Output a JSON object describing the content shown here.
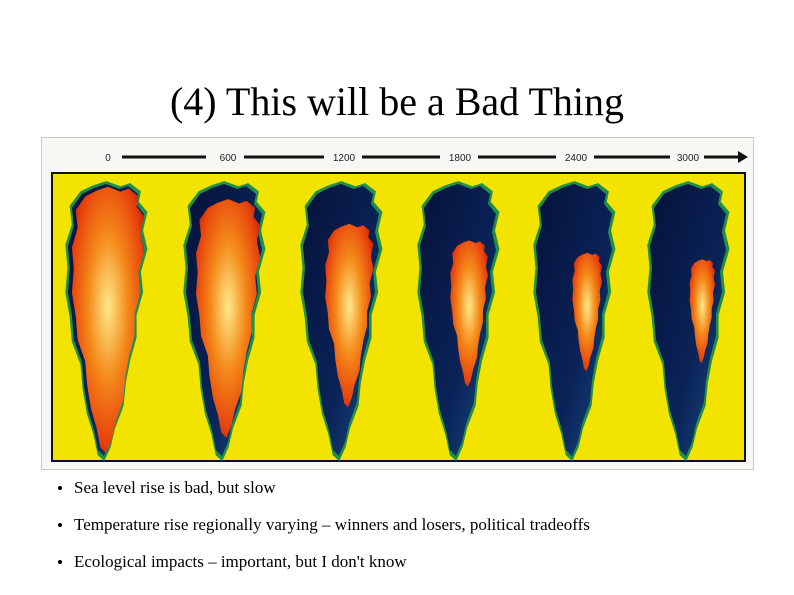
{
  "slide": {
    "title": "(4) This will be a Bad Thing"
  },
  "figure": {
    "timeline_labels": [
      "0",
      "600",
      "1200",
      "1800",
      "2400",
      "3000"
    ],
    "panels": [
      {
        "icon": "greenland-ice-sheet-map",
        "ice_extent": 1.0
      },
      {
        "icon": "greenland-ice-sheet-map",
        "ice_extent": 0.85
      },
      {
        "icon": "greenland-ice-sheet-map",
        "ice_extent": 0.55
      },
      {
        "icon": "greenland-ice-sheet-map",
        "ice_extent": 0.35
      },
      {
        "icon": "greenland-ice-sheet-map",
        "ice_extent": 0.2
      },
      {
        "icon": "greenland-ice-sheet-map",
        "ice_extent": 0.12
      }
    ],
    "colors": {
      "background": "#f2e300",
      "ocean_dark": "#05123a",
      "ocean_mid": "#1c4f86",
      "coast_green": "#1f8f4a",
      "ice_edge": "#e8420c",
      "ice_mid": "#f48a1a",
      "ice_core": "#ffe98a"
    }
  },
  "bullets": [
    {
      "text": "Sea level rise is bad, but slow"
    },
    {
      "text": "Temperature rise regionally varying – winners and losers, political tradeoffs"
    },
    {
      "text": "Ecological impacts – important, but I don't know"
    }
  ]
}
